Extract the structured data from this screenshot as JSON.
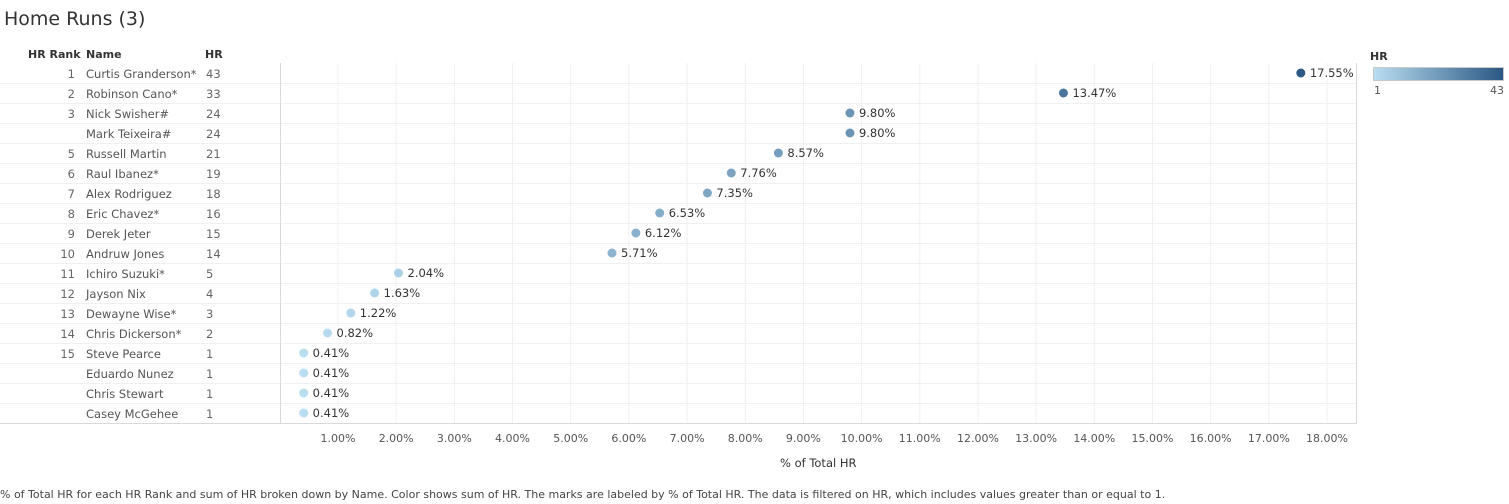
{
  "title": "Home Runs (3)",
  "headers": {
    "rank": "HR Rank",
    "name": "Name",
    "hr": "HR"
  },
  "rows": [
    {
      "rank": "1",
      "name": "Curtis Granderson*",
      "hr": "43",
      "pct": 17.55,
      "label": "17.55%"
    },
    {
      "rank": "2",
      "name": "Robinson Cano*",
      "hr": "33",
      "pct": 13.47,
      "label": "13.47%"
    },
    {
      "rank": "3",
      "name": "Nick Swisher#",
      "hr": "24",
      "pct": 9.8,
      "label": "9.80%"
    },
    {
      "rank": "",
      "name": "Mark Teixeira#",
      "hr": "24",
      "pct": 9.8,
      "label": "9.80%"
    },
    {
      "rank": "5",
      "name": "Russell Martin",
      "hr": "21",
      "pct": 8.57,
      "label": "8.57%"
    },
    {
      "rank": "6",
      "name": "Raul Ibanez*",
      "hr": "19",
      "pct": 7.76,
      "label": "7.76%"
    },
    {
      "rank": "7",
      "name": "Alex Rodriguez",
      "hr": "18",
      "pct": 7.35,
      "label": "7.35%"
    },
    {
      "rank": "8",
      "name": "Eric Chavez*",
      "hr": "16",
      "pct": 6.53,
      "label": "6.53%"
    },
    {
      "rank": "9",
      "name": "Derek Jeter",
      "hr": "15",
      "pct": 6.12,
      "label": "6.12%"
    },
    {
      "rank": "10",
      "name": "Andruw Jones",
      "hr": "14",
      "pct": 5.71,
      "label": "5.71%"
    },
    {
      "rank": "11",
      "name": "Ichiro Suzuki*",
      "hr": "5",
      "pct": 2.04,
      "label": "2.04%"
    },
    {
      "rank": "12",
      "name": "Jayson Nix",
      "hr": "4",
      "pct": 1.63,
      "label": "1.63%"
    },
    {
      "rank": "13",
      "name": "Dewayne Wise*",
      "hr": "3",
      "pct": 1.22,
      "label": "1.22%"
    },
    {
      "rank": "14",
      "name": "Chris Dickerson*",
      "hr": "2",
      "pct": 0.82,
      "label": "0.82%"
    },
    {
      "rank": "15",
      "name": "Steve Pearce",
      "hr": "1",
      "pct": 0.41,
      "label": "0.41%"
    },
    {
      "rank": "",
      "name": "Eduardo Nunez",
      "hr": "1",
      "pct": 0.41,
      "label": "0.41%"
    },
    {
      "rank": "",
      "name": "Chris Stewart",
      "hr": "1",
      "pct": 0.41,
      "label": "0.41%"
    },
    {
      "rank": "",
      "name": "Casey McGehee",
      "hr": "1",
      "pct": 0.41,
      "label": "0.41%"
    }
  ],
  "chart_data": {
    "type": "scatter",
    "title": "Home Runs (3)",
    "xlabel": "% of Total HR",
    "ylabel": "",
    "xlim": [
      0.0,
      18.5
    ],
    "xticks": [
      1,
      2,
      3,
      4,
      5,
      6,
      7,
      8,
      9,
      10,
      11,
      12,
      13,
      14,
      15,
      16,
      17,
      18
    ],
    "xtick_labels": [
      "1.00%",
      "2.00%",
      "3.00%",
      "4.00%",
      "5.00%",
      "6.00%",
      "7.00%",
      "8.00%",
      "9.00%",
      "10.00%",
      "11.00%",
      "12.00%",
      "13.00%",
      "14.00%",
      "15.00%",
      "16.00%",
      "17.00%",
      "18.00%"
    ],
    "color_legend": {
      "title": "HR",
      "min": "1",
      "max": "43",
      "color_min": "#b9ddf1",
      "color_max": "#2a5783"
    },
    "grid": true
  },
  "caption": "% of Total HR for each HR Rank and sum of HR broken down by Name.  Color shows sum of HR.  The marks are labeled by % of Total HR. The data is filtered on HR, which includes values greater than or equal to 1."
}
